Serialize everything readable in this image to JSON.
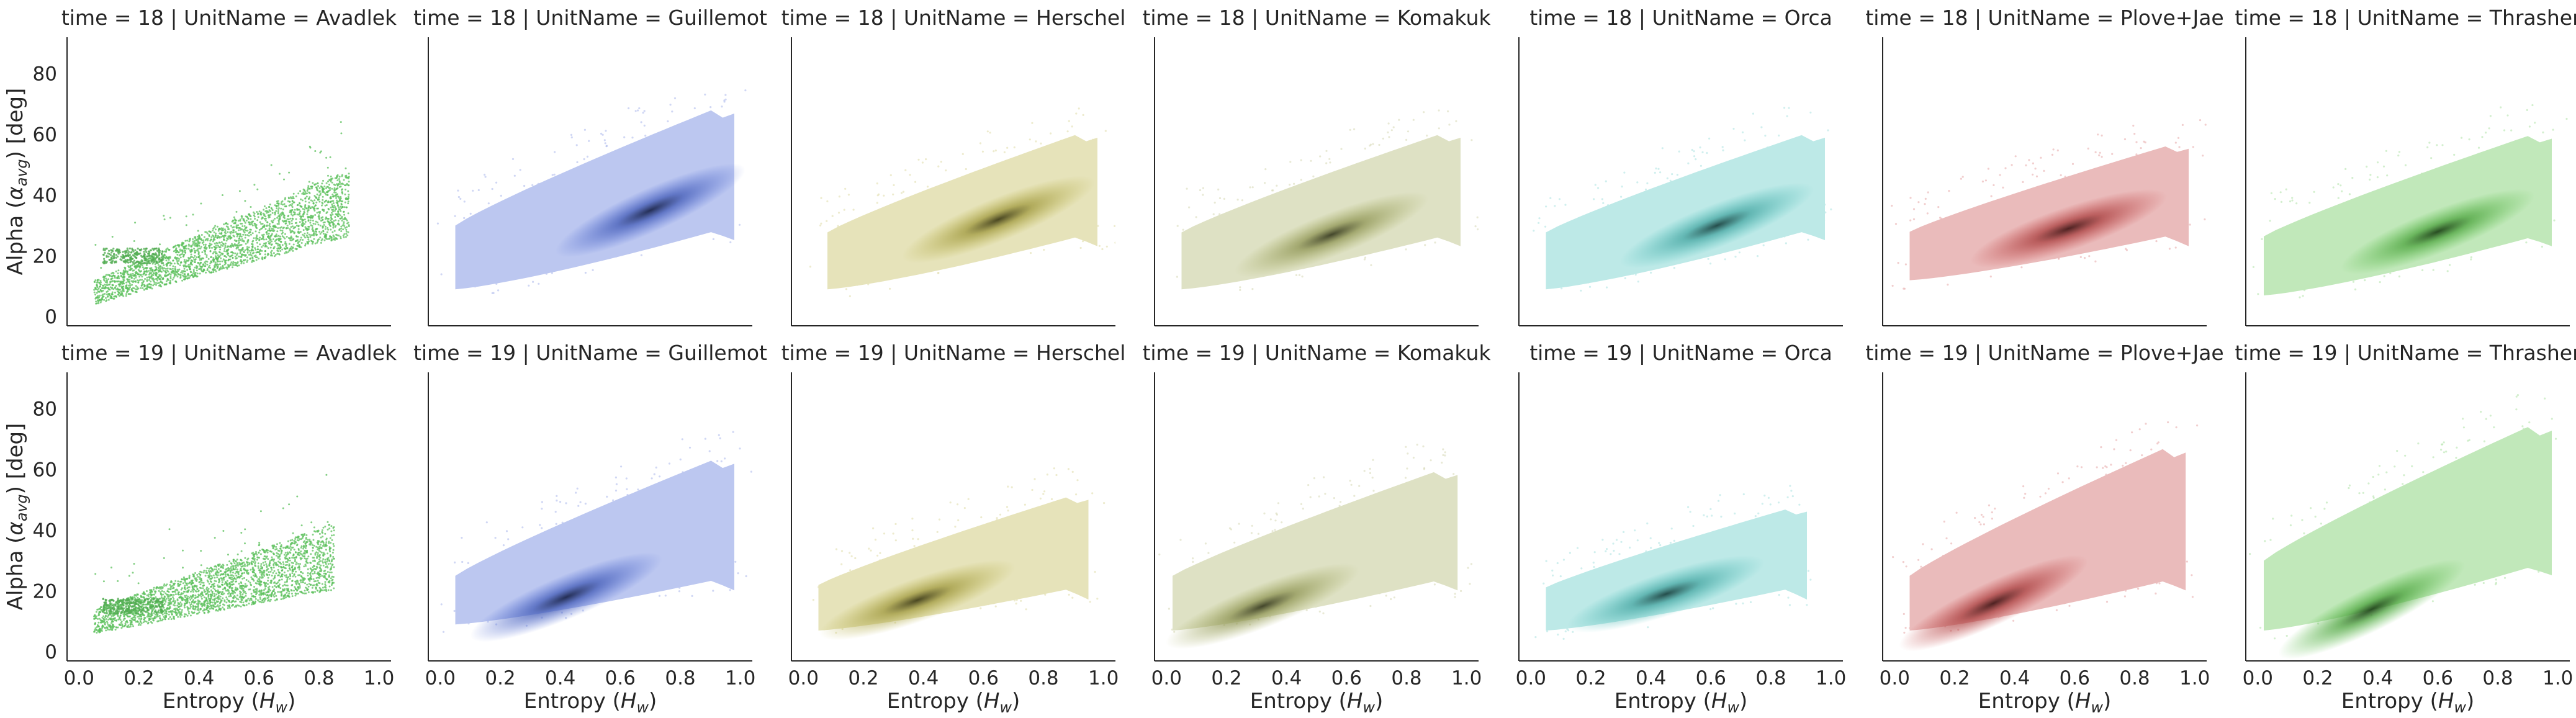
{
  "figure": {
    "row_labels": [
      "time = 18",
      "time = 19"
    ],
    "col_labels": [
      "UnitName = Avadlek",
      "UnitName = Guillemot",
      "UnitName = Herschel",
      "UnitName = Komakuk",
      "UnitName = Orca",
      "UnitName = Plove+Jae",
      "UnitName = Thrasher"
    ],
    "xlabel_prefix": "Entropy (",
    "xlabel_var": "H",
    "xlabel_sub": "w",
    "xlabel_suffix": ")",
    "ylabel_prefix": "Alpha (",
    "ylabel_var": "α",
    "ylabel_sub": "avg",
    "ylabel_suffix": ") [deg]"
  },
  "chart_data": {
    "type": "heatmap",
    "title": "",
    "x_variable": "Entropy (H_w)",
    "y_variable": "Alpha (α_avg) [deg]",
    "xlim": [
      -0.04,
      1.04
    ],
    "ylim": [
      -3,
      92
    ],
    "x_ticks": [
      0.0,
      0.2,
      0.4,
      0.6,
      0.8,
      1.0
    ],
    "x_tick_labels": [
      "0.0",
      "0.2",
      "0.4",
      "0.6",
      "0.8",
      "1.0"
    ],
    "y_ticks": [
      0,
      20,
      40,
      60,
      80
    ],
    "y_tick_labels": [
      "0",
      "20",
      "40",
      "60",
      "80"
    ],
    "grid": false,
    "colors": {
      "Avadlek": "#5cc05c",
      "Guillemot": "#4f6cd8",
      "Herschel": "#bdb54a",
      "Komakuk": "#a9b064",
      "Orca": "#52c4c0",
      "Plove+Jae": "#c94b4b",
      "Thrasher": "#5cc24a"
    },
    "panels": [
      {
        "time": 18,
        "unit": "Avadlek",
        "core": [
          0.2,
          20
        ],
        "centroid": [
          0.45,
          25
        ],
        "style": "scatter",
        "x_range": [
          0.05,
          0.9
        ],
        "y_range": [
          0,
          45
        ]
      },
      {
        "time": 18,
        "unit": "Guillemot",
        "core": [
          0.7,
          35
        ],
        "centroid": [
          0.6,
          30
        ],
        "style": "density",
        "x_range": [
          0.05,
          0.98
        ],
        "y_range": [
          5,
          80
        ]
      },
      {
        "time": 18,
        "unit": "Herschel",
        "core": [
          0.65,
          32
        ],
        "centroid": [
          0.55,
          28
        ],
        "style": "density",
        "x_range": [
          0.08,
          0.98
        ],
        "y_range": [
          5,
          70
        ]
      },
      {
        "time": 18,
        "unit": "Komakuk",
        "core": [
          0.55,
          27
        ],
        "centroid": [
          0.55,
          28
        ],
        "style": "density",
        "x_range": [
          0.05,
          0.98
        ],
        "y_range": [
          5,
          70
        ]
      },
      {
        "time": 18,
        "unit": "Orca",
        "core": [
          0.62,
          30
        ],
        "centroid": [
          0.6,
          30
        ],
        "style": "density",
        "x_range": [
          0.05,
          0.98
        ],
        "y_range": [
          5,
          70
        ]
      },
      {
        "time": 18,
        "unit": "Plove+Jae",
        "core": [
          0.58,
          29
        ],
        "centroid": [
          0.55,
          28
        ],
        "style": "density",
        "x_range": [
          0.05,
          0.98
        ],
        "y_range": [
          8,
          65
        ]
      },
      {
        "time": 18,
        "unit": "Thrasher",
        "core": [
          0.6,
          28
        ],
        "centroid": [
          0.55,
          28
        ],
        "style": "density",
        "x_range": [
          0.02,
          0.98
        ],
        "y_range": [
          3,
          70
        ]
      },
      {
        "time": 19,
        "unit": "Avadlek",
        "core": [
          0.25,
          15
        ],
        "centroid": [
          0.35,
          18
        ],
        "style": "scatter",
        "x_range": [
          0.05,
          0.85
        ],
        "y_range": [
          2,
          45
        ]
      },
      {
        "time": 19,
        "unit": "Guillemot",
        "core": [
          0.42,
          18
        ],
        "centroid": [
          0.55,
          25
        ],
        "style": "density",
        "x_range": [
          0.05,
          0.98
        ],
        "y_range": [
          5,
          75
        ]
      },
      {
        "time": 19,
        "unit": "Herschel",
        "core": [
          0.38,
          17
        ],
        "centroid": [
          0.5,
          22
        ],
        "style": "density",
        "x_range": [
          0.05,
          0.95
        ],
        "y_range": [
          3,
          60
        ]
      },
      {
        "time": 19,
        "unit": "Komakuk",
        "core": [
          0.32,
          15
        ],
        "centroid": [
          0.5,
          25
        ],
        "style": "density",
        "x_range": [
          0.02,
          0.97
        ],
        "y_range": [
          3,
          70
        ]
      },
      {
        "time": 19,
        "unit": "Orca",
        "core": [
          0.45,
          19
        ],
        "centroid": [
          0.5,
          22
        ],
        "style": "density",
        "x_range": [
          0.05,
          0.92
        ],
        "y_range": [
          3,
          55
        ]
      },
      {
        "time": 19,
        "unit": "Plove+Jae",
        "core": [
          0.33,
          16
        ],
        "centroid": [
          0.5,
          25
        ],
        "style": "density",
        "x_range": [
          0.05,
          0.97
        ],
        "y_range": [
          3,
          80
        ]
      },
      {
        "time": 19,
        "unit": "Thrasher",
        "core": [
          0.38,
          14
        ],
        "centroid": [
          0.5,
          30
        ],
        "style": "density",
        "x_range": [
          0.02,
          0.98
        ],
        "y_range": [
          3,
          88
        ]
      }
    ]
  }
}
